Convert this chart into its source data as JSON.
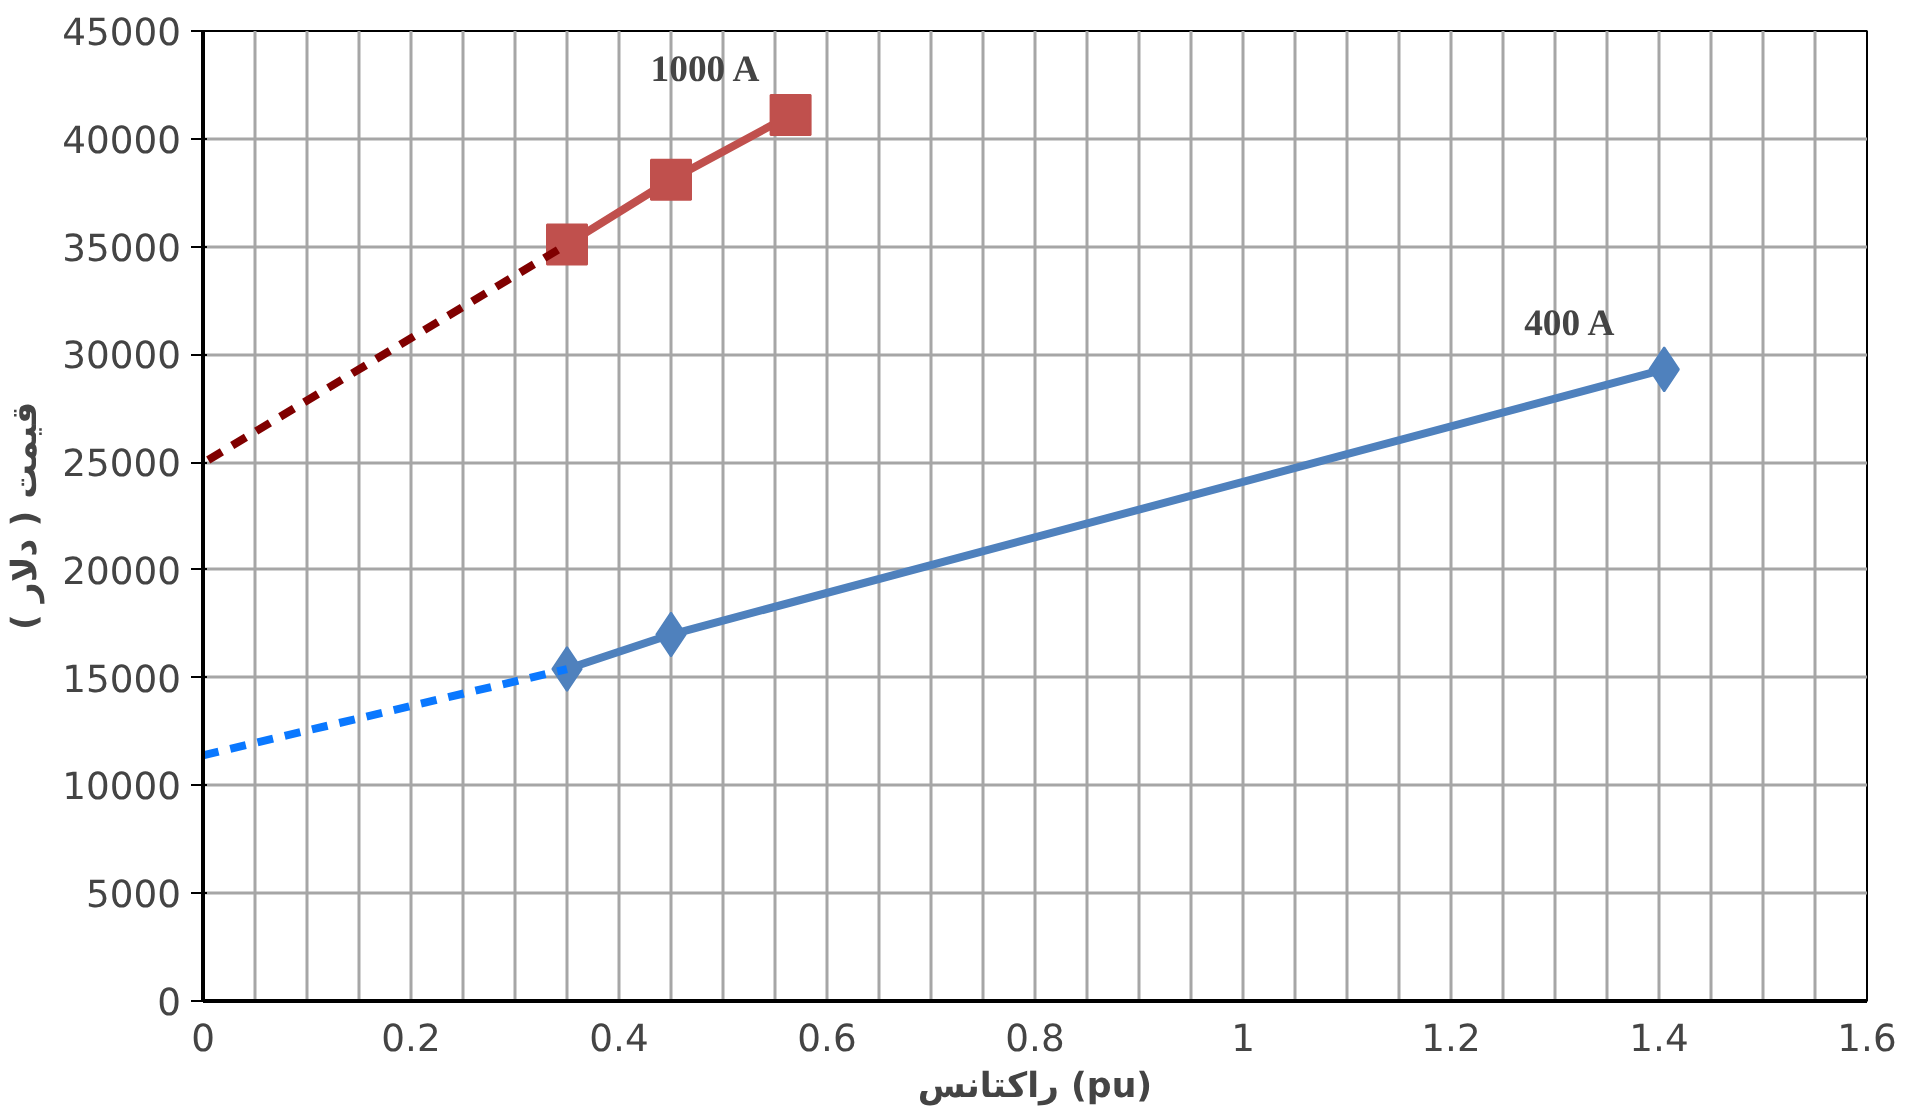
{
  "chart_data": {
    "type": "line",
    "xlabel": "راکتانس (pu)",
    "ylabel": "قیمت ( دلار )",
    "xlim": [
      0,
      1.6
    ],
    "ylim": [
      0,
      45000
    ],
    "xticks": [
      0,
      {
        "value": 0.05,
        "label": null
      },
      {
        "value": 0.1,
        "label": null
      },
      {
        "value": 0.15,
        "label": null
      },
      0.2,
      {
        "value": 0.25,
        "label": null
      },
      {
        "value": 0.3,
        "label": null
      },
      {
        "value": 0.35,
        "label": null
      },
      0.4,
      {
        "value": 0.45,
        "label": null
      },
      {
        "value": 0.5,
        "label": null
      },
      {
        "value": 0.55,
        "label": null
      },
      0.6,
      {
        "value": 0.65,
        "label": null
      },
      {
        "value": 0.7,
        "label": null
      },
      {
        "value": 0.75,
        "label": null
      },
      0.8,
      {
        "value": 0.85,
        "label": null
      },
      {
        "value": 0.9,
        "label": null
      },
      {
        "value": 0.95,
        "label": null
      },
      1,
      {
        "value": 1.05,
        "label": null
      },
      {
        "value": 1.1,
        "label": null
      },
      {
        "value": 1.15,
        "label": null
      },
      1.2,
      {
        "value": 1.25,
        "label": null
      },
      {
        "value": 1.3,
        "label": null
      },
      {
        "value": 1.35,
        "label": null
      },
      1.4,
      {
        "value": 1.45,
        "label": null
      },
      {
        "value": 1.5,
        "label": null
      },
      {
        "value": 1.55,
        "label": null
      },
      1.6
    ],
    "yticks": [
      0,
      5000,
      10000,
      15000,
      20000,
      25000,
      30000,
      35000,
      40000,
      45000
    ],
    "grid": true,
    "series": [
      {
        "name": "1000 A",
        "color": "#c0504d",
        "marker": "square",
        "line_style": "solid",
        "x": [
          0.35,
          0.45,
          0.565
        ],
        "values": [
          35100,
          38100,
          41100
        ]
      },
      {
        "name": "400 A",
        "color": "#4f81bd",
        "marker": "diamond",
        "line_style": "solid",
        "x": [
          0.35,
          0.45,
          1.405
        ],
        "values": [
          15400,
          17000,
          29300
        ]
      },
      {
        "color": "#800000",
        "marker": "none",
        "line_style": "dashed",
        "x": [
          0.005,
          0.35
        ],
        "values": [
          25100,
          35100
        ]
      },
      {
        "color": "#0a78ff",
        "marker": "none",
        "line_style": "dashed",
        "x": [
          0,
          0.35
        ],
        "values": [
          11400,
          15400
        ]
      }
    ]
  }
}
